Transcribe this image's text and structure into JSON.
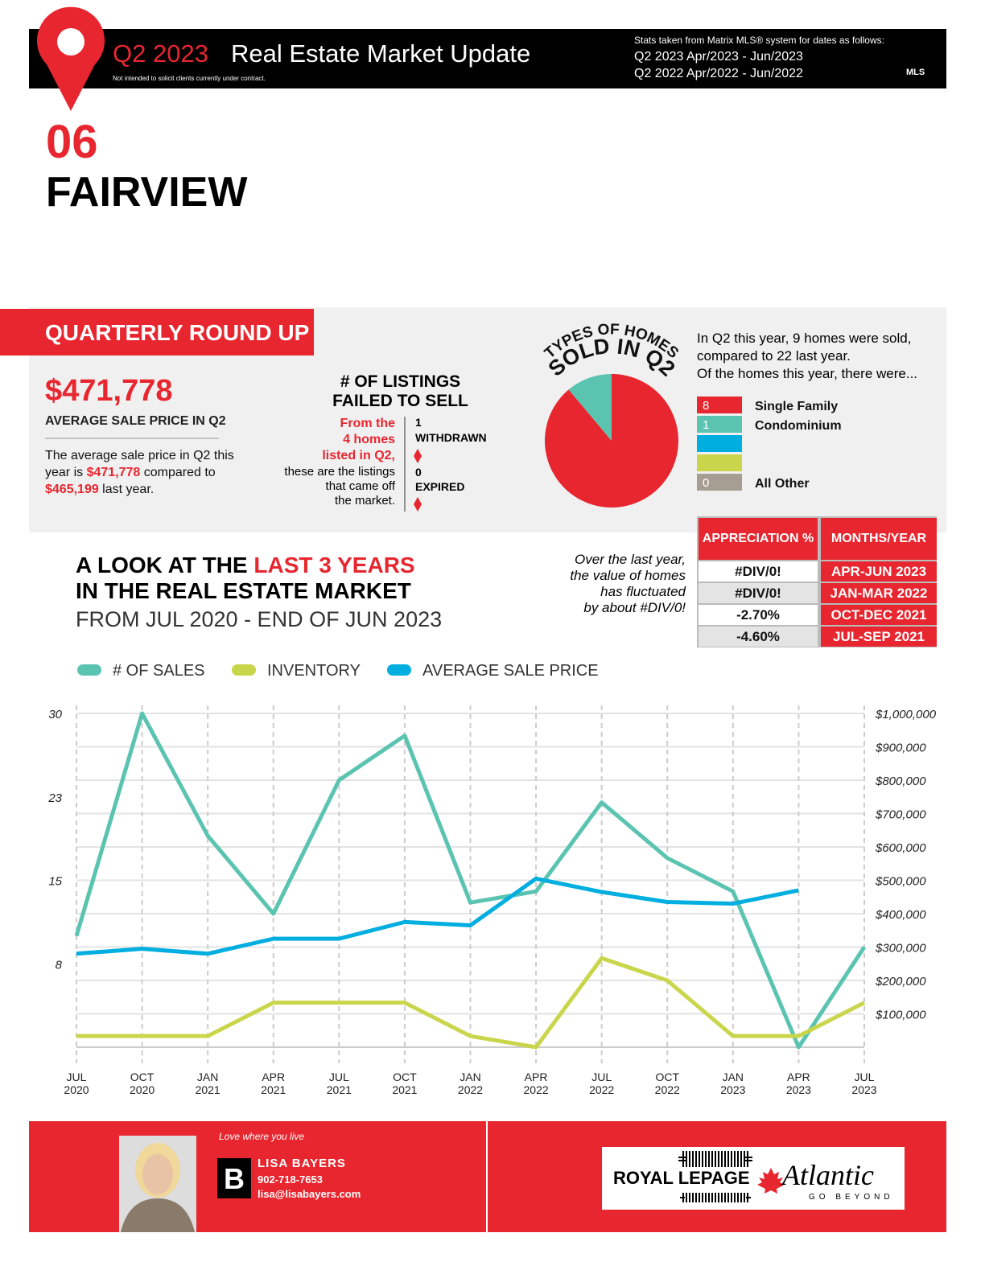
{
  "header": {
    "quarter": "Q2 2023",
    "title": "Real Estate Market Update",
    "disclaimer": "Not intended to solicit clients currently under contract.",
    "stats_note": "Stats taken from Matrix MLS® system for dates as follows:",
    "stats_lines": [
      "Q2 2023 Apr/2023 - Jun/2023",
      "Q2 2022 Apr/2022 - Jun/2022"
    ],
    "mls_logo": "MLS"
  },
  "area": {
    "number": "06",
    "name": "FAIRVIEW"
  },
  "roundup": {
    "heading": "QUARTERLY ROUND UP",
    "average_price": "$471,778",
    "average_label": "AVERAGE SALE PRICE IN Q2",
    "comparison": [
      "The average sale price in Q2 this year is ",
      "$471,778",
      " compared to ",
      "$465,199",
      " last year."
    ]
  },
  "failed_listings": {
    "heading": [
      "# OF LISTINGS",
      "FAILED TO SELL"
    ],
    "intro_highlight": [
      "From the",
      "4 homes",
      "listed in Q2,"
    ],
    "intro": [
      "these are the listings",
      "that came off",
      "the market."
    ],
    "withdrawn": {
      "count": "1",
      "label": "WITHDRAWN"
    },
    "expired": {
      "count": "0",
      "label": "EXPIRED"
    }
  },
  "home_types": {
    "summary": [
      "In Q2 this year, 9 homes were sold,",
      "compared to 22 last year.",
      "Of the homes this year, there were..."
    ]
  },
  "appreciation_table": {
    "headers": [
      "APPRECIATION %",
      "MONTHS/YEAR"
    ],
    "rows": [
      [
        "#DIV/0!",
        "APR-JUN 2023"
      ],
      [
        "#DIV/0!",
        "JAN-MAR 2022"
      ],
      [
        "-2.70%",
        "OCT-DEC 2021"
      ],
      [
        "-4.60%",
        "JUL-SEP 2021"
      ]
    ]
  },
  "look_back": {
    "title": [
      "A LOOK AT THE ",
      "LAST 3 YEARS",
      "IN THE REAL ESTATE MARKET"
    ],
    "subtitle": "FROM JUL 2020 - END OF JUN 2023",
    "note": [
      "Over the last year,",
      "the value of homes",
      "has fluctuated",
      "by about #DIV/0!"
    ]
  },
  "chart_data": [
    {
      "type": "pie",
      "title": [
        "TYPES OF HOMES",
        "SOLD IN Q2"
      ],
      "categories": [
        "Single Family",
        "Condominium",
        null,
        null,
        "All Other"
      ],
      "values": [
        8,
        1,
        null,
        null,
        0
      ],
      "colors": [
        "#e8262f",
        "#5bc4b1",
        "#00aee0",
        "#c9d64b",
        "#a79e93"
      ]
    },
    {
      "type": "line",
      "categories": [
        "JUL 2020",
        "OCT 2020",
        "JAN 2021",
        "APR 2021",
        "JUL 2021",
        "OCT 2021",
        "JAN 2022",
        "APR 2022",
        "JUL 2022",
        "OCT 2022",
        "JAN 2023",
        "APR 2023",
        "JUL 2023"
      ],
      "series": [
        {
          "name": "# OF SALES",
          "color": "#5bc4b1",
          "values": [
            10,
            30,
            19,
            12,
            24,
            28,
            13,
            14,
            22,
            17,
            14,
            0,
            9
          ]
        },
        {
          "name": "INVENTORY",
          "color": "#c9d64b",
          "values": [
            1,
            1,
            1,
            4,
            4,
            4,
            1,
            0,
            8,
            6,
            1,
            1,
            4
          ]
        },
        {
          "name": "AVERAGE SALE PRICE",
          "color": "#00aee0",
          "axis": "y2",
          "values": [
            280000,
            295000,
            280000,
            325000,
            325000,
            375000,
            365000,
            505000,
            465000,
            435000,
            430000,
            470000,
            null
          ]
        }
      ],
      "ylim": [
        0,
        30
      ],
      "yticks": [
        {
          "value": 7.5,
          "label": "8"
        },
        15,
        {
          "value": 22.5,
          "label": "23"
        },
        30
      ],
      "y2lim": [
        0,
        1000000
      ],
      "y2ticks": [
        {
          "value": 100000,
          "label": "$100,000"
        },
        {
          "value": 200000,
          "label": "$200,000"
        },
        {
          "value": 300000,
          "label": "$300,000"
        },
        {
          "value": 400000,
          "label": "$400,000"
        },
        {
          "value": 500000,
          "label": "$500,000"
        },
        {
          "value": 600000,
          "label": "$600,000"
        },
        {
          "value": 700000,
          "label": "$700,000"
        },
        {
          "value": 800000,
          "label": "$800,000"
        },
        {
          "value": 900000,
          "label": "$900,000"
        },
        {
          "value": 1000000,
          "label": "$1,000,000"
        }
      ],
      "grid": true,
      "legend": "top"
    }
  ],
  "footer": {
    "tagline": "Love where you live",
    "agent": "LISA BAYERS",
    "phone": "902-718-7653",
    "email": "lisa@lisabayers.com",
    "brand": "ROYAL LEPAGE",
    "brand2": "Atlantic",
    "slogan": "GO BEYOND"
  }
}
